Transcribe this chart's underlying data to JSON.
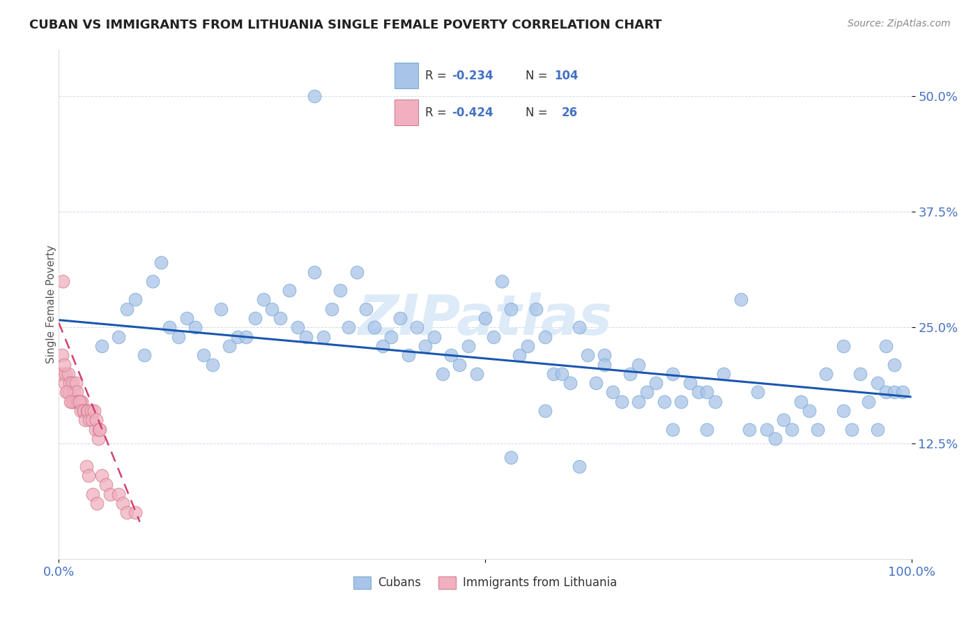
{
  "title": "CUBAN VS IMMIGRANTS FROM LITHUANIA SINGLE FEMALE POVERTY CORRELATION CHART",
  "source": "Source: ZipAtlas.com",
  "ylabel": "Single Female Poverty",
  "yticks_labels": [
    "12.5%",
    "25.0%",
    "37.5%",
    "50.0%"
  ],
  "ytick_vals": [
    0.125,
    0.25,
    0.375,
    0.5
  ],
  "xlim": [
    0.0,
    1.0
  ],
  "ylim": [
    0.0,
    0.55
  ],
  "cuban_color": "#a8c4e8",
  "cuban_edge": "#7aaad4",
  "lith_color": "#f0b0c0",
  "lith_edge": "#d47a8a",
  "trendline_cuban_color": "#1a56b0",
  "trendline_lith_color": "#d04070",
  "watermark_color": "#ddeaf8",
  "tick_color": "#4472c4",
  "cuban_scatter_x": [
    0.05,
    0.07,
    0.08,
    0.09,
    0.1,
    0.11,
    0.12,
    0.13,
    0.14,
    0.15,
    0.16,
    0.17,
    0.18,
    0.19,
    0.2,
    0.21,
    0.22,
    0.23,
    0.24,
    0.25,
    0.26,
    0.27,
    0.28,
    0.29,
    0.3,
    0.31,
    0.32,
    0.33,
    0.34,
    0.35,
    0.36,
    0.37,
    0.38,
    0.39,
    0.4,
    0.41,
    0.42,
    0.43,
    0.44,
    0.45,
    0.46,
    0.47,
    0.48,
    0.5,
    0.51,
    0.52,
    0.53,
    0.54,
    0.55,
    0.56,
    0.57,
    0.58,
    0.59,
    0.6,
    0.61,
    0.62,
    0.63,
    0.64,
    0.65,
    0.66,
    0.67,
    0.68,
    0.69,
    0.7,
    0.71,
    0.72,
    0.73,
    0.74,
    0.75,
    0.76,
    0.77,
    0.78,
    0.8,
    0.82,
    0.83,
    0.85,
    0.87,
    0.88,
    0.9,
    0.92,
    0.93,
    0.95,
    0.96,
    0.97,
    0.98,
    0.99,
    0.49,
    0.53,
    0.57,
    0.61,
    0.64,
    0.68,
    0.72,
    0.76,
    0.81,
    0.84,
    0.86,
    0.89,
    0.92,
    0.94,
    0.96,
    0.97,
    0.98,
    0.3
  ],
  "cuban_scatter_y": [
    0.23,
    0.24,
    0.27,
    0.28,
    0.22,
    0.3,
    0.32,
    0.25,
    0.24,
    0.26,
    0.25,
    0.22,
    0.21,
    0.27,
    0.23,
    0.24,
    0.24,
    0.26,
    0.28,
    0.27,
    0.26,
    0.29,
    0.25,
    0.24,
    0.31,
    0.24,
    0.27,
    0.29,
    0.25,
    0.31,
    0.27,
    0.25,
    0.23,
    0.24,
    0.26,
    0.22,
    0.25,
    0.23,
    0.24,
    0.2,
    0.22,
    0.21,
    0.23,
    0.26,
    0.24,
    0.3,
    0.27,
    0.22,
    0.23,
    0.27,
    0.24,
    0.2,
    0.2,
    0.19,
    0.25,
    0.22,
    0.19,
    0.22,
    0.18,
    0.17,
    0.2,
    0.21,
    0.18,
    0.19,
    0.17,
    0.2,
    0.17,
    0.19,
    0.18,
    0.18,
    0.17,
    0.2,
    0.28,
    0.18,
    0.14,
    0.15,
    0.17,
    0.16,
    0.2,
    0.16,
    0.14,
    0.17,
    0.19,
    0.18,
    0.18,
    0.18,
    0.2,
    0.11,
    0.16,
    0.1,
    0.21,
    0.17,
    0.14,
    0.14,
    0.14,
    0.13,
    0.14,
    0.14,
    0.23,
    0.2,
    0.14,
    0.23,
    0.21,
    0.5
  ],
  "lith_scatter_x": [
    0.003,
    0.004,
    0.005,
    0.007,
    0.008,
    0.01,
    0.011,
    0.012,
    0.013,
    0.015,
    0.016,
    0.017,
    0.018,
    0.019,
    0.02,
    0.021,
    0.022,
    0.023,
    0.025,
    0.027,
    0.028,
    0.03,
    0.032,
    0.035,
    0.04,
    0.045
  ],
  "lith_scatter_y": [
    0.2,
    0.22,
    0.3,
    0.19,
    0.2,
    0.18,
    0.2,
    0.18,
    0.19,
    0.17,
    0.19,
    0.17,
    0.18,
    0.17,
    0.19,
    0.18,
    0.17,
    0.17,
    0.17,
    0.17,
    0.16,
    0.16,
    0.1,
    0.09,
    0.07,
    0.06
  ],
  "lith_extra_x": [
    0.006,
    0.009,
    0.014,
    0.024,
    0.026,
    0.029,
    0.031,
    0.033,
    0.034,
    0.036,
    0.038,
    0.039,
    0.041,
    0.043,
    0.044,
    0.046,
    0.047,
    0.048,
    0.05,
    0.055,
    0.06,
    0.07,
    0.075,
    0.08,
    0.09
  ],
  "lith_extra_y": [
    0.21,
    0.18,
    0.17,
    0.17,
    0.16,
    0.16,
    0.15,
    0.16,
    0.16,
    0.15,
    0.16,
    0.15,
    0.16,
    0.14,
    0.15,
    0.13,
    0.14,
    0.14,
    0.09,
    0.08,
    0.07,
    0.07,
    0.06,
    0.05,
    0.05
  ],
  "cuban_trend_x": [
    0.0,
    1.0
  ],
  "cuban_trend_y": [
    0.258,
    0.175
  ],
  "lith_trend_x": [
    0.0,
    0.095
  ],
  "lith_trend_y": [
    0.255,
    0.04
  ]
}
